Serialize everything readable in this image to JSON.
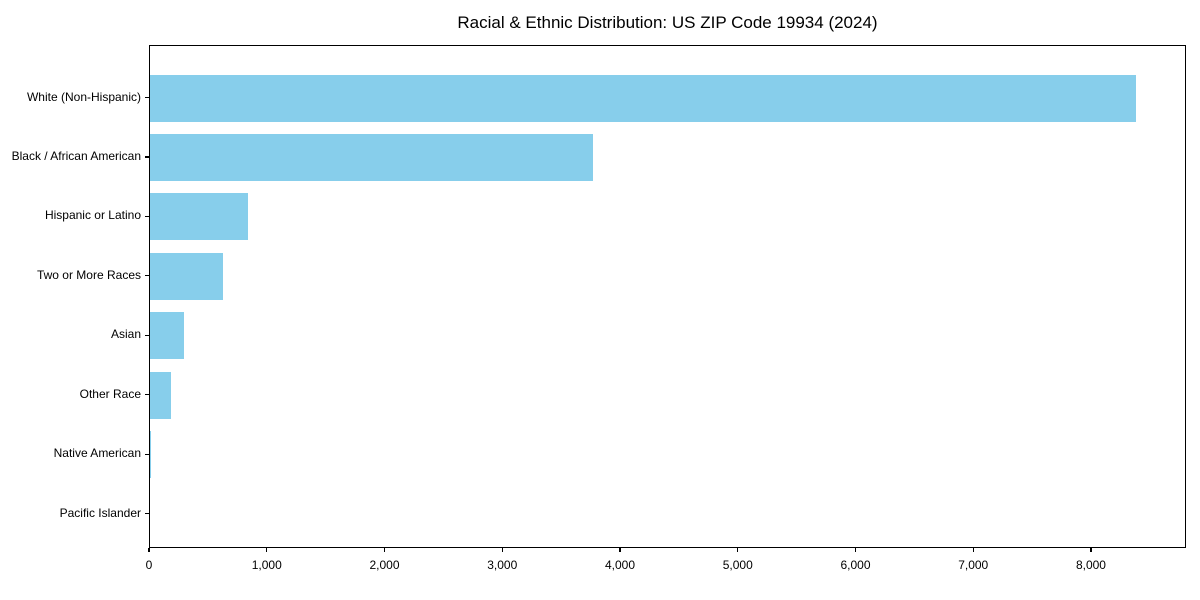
{
  "title": "Racial & Ethnic Distribution: US ZIP Code 19934 (2024)",
  "chart_data": {
    "type": "bar",
    "orientation": "horizontal",
    "title": "Racial & Ethnic Distribution: US ZIP Code 19934 (2024)",
    "categories": [
      "White (Non-Hispanic)",
      "Black / African American",
      "Hispanic or Latino",
      "Two or More Races",
      "Asian",
      "Other Race",
      "Native American",
      "Pacific Islander"
    ],
    "values": [
      8370,
      3760,
      830,
      620,
      290,
      175,
      10,
      0
    ],
    "bar_color": "#87CEEB",
    "background_color": "#ffffff",
    "spine_color": "#000000",
    "xlabel": "",
    "ylabel": "",
    "xlim": [
      0,
      8790
    ],
    "x_ticks": [
      0,
      1000,
      2000,
      3000,
      4000,
      5000,
      6000,
      7000,
      8000
    ],
    "x_tick_labels": [
      "0",
      "1,000",
      "2,000",
      "3,000",
      "4,000",
      "5,000",
      "6,000",
      "7,000",
      "8,000"
    ],
    "grid": false,
    "legend": null
  }
}
